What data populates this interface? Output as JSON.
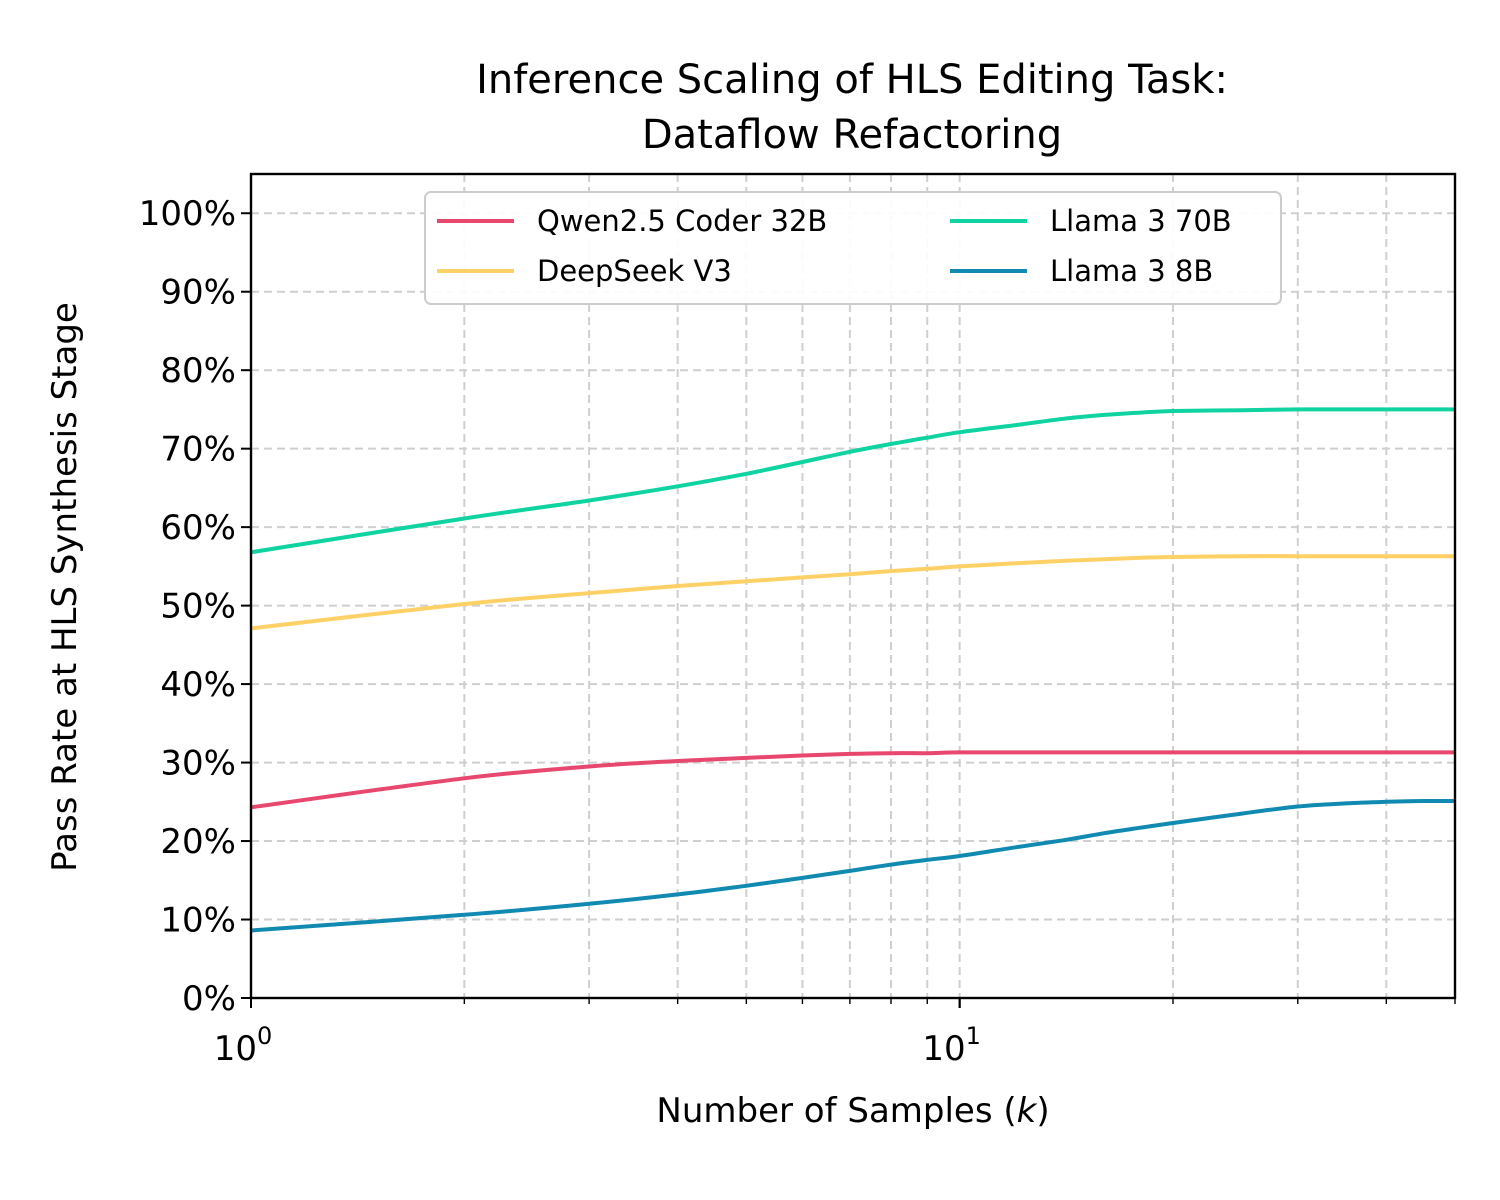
{
  "chart_data": {
    "type": "line",
    "title": "Inference Scaling of HLS Editing Task:",
    "subtitle": "Dataflow Refactoring",
    "xlabel_prefix": "Number of Samples (",
    "xlabel_var": "k",
    "xlabel_suffix": ")",
    "ylabel": "Pass Rate at HLS Synthesis Stage",
    "x_scale": "log",
    "xlim": [
      1,
      50
    ],
    "ylim": [
      0,
      105
    ],
    "x_ticks": [
      {
        "value": 1,
        "base": "10",
        "exp": "0"
      },
      {
        "value": 10,
        "base": "10",
        "exp": "1"
      }
    ],
    "y_ticks": [
      {
        "value": 0,
        "label": "0%"
      },
      {
        "value": 10,
        "label": "10%"
      },
      {
        "value": 20,
        "label": "20%"
      },
      {
        "value": 30,
        "label": "30%"
      },
      {
        "value": 40,
        "label": "40%"
      },
      {
        "value": 50,
        "label": "50%"
      },
      {
        "value": 60,
        "label": "60%"
      },
      {
        "value": 70,
        "label": "70%"
      },
      {
        "value": 80,
        "label": "80%"
      },
      {
        "value": 90,
        "label": "90%"
      },
      {
        "value": 100,
        "label": "100%"
      }
    ],
    "grid": true,
    "legend_position": "top-center",
    "legend_columns": 2,
    "x": [
      1,
      2,
      3,
      4,
      5,
      6,
      7,
      8,
      9,
      10,
      12,
      14,
      16,
      18,
      20,
      25,
      30,
      35,
      40,
      45,
      50
    ],
    "series": [
      {
        "name": "Qwen2.5 Coder 32B",
        "color": "#e8476e",
        "values": [
          24.3,
          28.0,
          29.5,
          30.2,
          30.6,
          30.9,
          31.1,
          31.2,
          31.2,
          31.3,
          31.3,
          31.3,
          31.3,
          31.3,
          31.3,
          31.3,
          31.3,
          31.3,
          31.3,
          31.3,
          31.3
        ]
      },
      {
        "name": "DeepSeek V3",
        "color": "#fdd166",
        "values": [
          47.1,
          50.2,
          51.6,
          52.5,
          53.1,
          53.6,
          54.0,
          54.4,
          54.7,
          55.0,
          55.4,
          55.7,
          55.9,
          56.1,
          56.2,
          56.3,
          56.3,
          56.3,
          56.3,
          56.3,
          56.3
        ]
      },
      {
        "name": "Llama 3 70B",
        "color": "#0fd3a0",
        "values": [
          56.8,
          61.1,
          63.4,
          65.2,
          66.8,
          68.3,
          69.6,
          70.6,
          71.4,
          72.1,
          73.0,
          73.8,
          74.3,
          74.6,
          74.8,
          74.9,
          75.0,
          75.0,
          75.0,
          75.0,
          75.0
        ]
      },
      {
        "name": "Llama 3 8B",
        "color": "#118ab2",
        "values": [
          8.6,
          10.6,
          12.0,
          13.2,
          14.3,
          15.3,
          16.2,
          17.0,
          17.6,
          18.1,
          19.2,
          20.1,
          21.0,
          21.7,
          22.3,
          23.5,
          24.4,
          24.8,
          25.0,
          25.1,
          25.1
        ]
      }
    ]
  }
}
